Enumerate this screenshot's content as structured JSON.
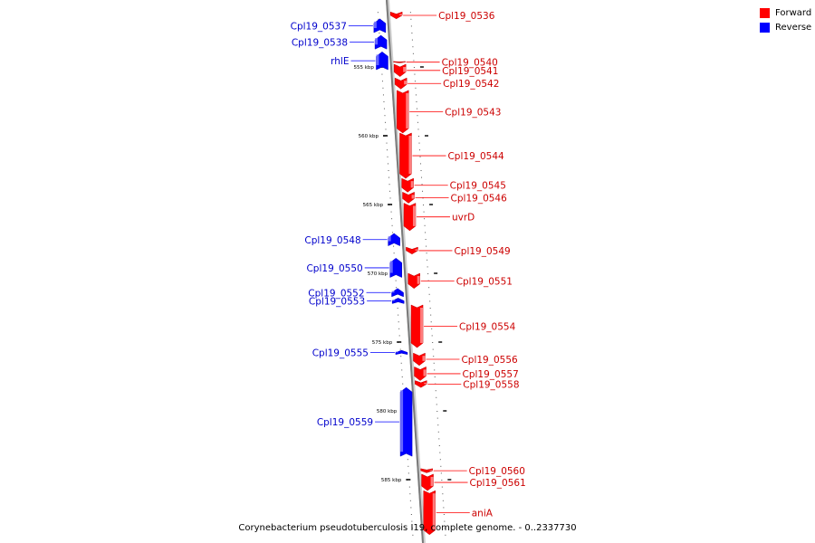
{
  "legend": {
    "forward_label": "Forward",
    "reverse_label": "Reverse",
    "forward_color": "#ff0000",
    "reverse_color": "#0000ff"
  },
  "footer": {
    "caption": "Corynebacterium pseudotuberculosis I19, complete genome. - 0..2337730"
  },
  "scale": {
    "ticks": [
      {
        "kbp": 555,
        "label": "555 kbp"
      },
      {
        "kbp": 560,
        "label": "560 kbp"
      },
      {
        "kbp": 565,
        "label": "565 kbp"
      },
      {
        "kbp": 570,
        "label": "570 kbp"
      },
      {
        "kbp": 575,
        "label": "575 kbp"
      },
      {
        "kbp": 580,
        "label": "580 kbp"
      },
      {
        "kbp": 585,
        "label": "585 kbp"
      }
    ]
  },
  "genes": [
    {
      "name": "Cpl19_0536",
      "strand": "forward",
      "start_kbp": 551.0,
      "end_kbp": 551.5
    },
    {
      "name": "Cpl19_0537",
      "strand": "reverse",
      "start_kbp": 551.5,
      "end_kbp": 552.5
    },
    {
      "name": "Cpl19_0538",
      "strand": "reverse",
      "start_kbp": 552.7,
      "end_kbp": 553.7
    },
    {
      "name": "rhlE",
      "strand": "reverse",
      "start_kbp": 553.9,
      "end_kbp": 555.2
    },
    {
      "name": "Cpl19_0540",
      "strand": "forward",
      "start_kbp": 554.6,
      "end_kbp": 554.7
    },
    {
      "name": "Cpl19_0541",
      "strand": "forward",
      "start_kbp": 554.8,
      "end_kbp": 555.7
    },
    {
      "name": "Cpl19_0542",
      "strand": "forward",
      "start_kbp": 555.8,
      "end_kbp": 556.6
    },
    {
      "name": "Cpl19_0543",
      "strand": "forward",
      "start_kbp": 556.7,
      "end_kbp": 559.8
    },
    {
      "name": "Cpl19_0544",
      "strand": "forward",
      "start_kbp": 559.8,
      "end_kbp": 563.1
    },
    {
      "name": "Cpl19_0545",
      "strand": "forward",
      "start_kbp": 563.1,
      "end_kbp": 564.1
    },
    {
      "name": "Cpl19_0546",
      "strand": "forward",
      "start_kbp": 564.1,
      "end_kbp": 564.9
    },
    {
      "name": "uvrD",
      "strand": "forward",
      "start_kbp": 564.9,
      "end_kbp": 566.9
    },
    {
      "name": "Cpl19_0548",
      "strand": "reverse",
      "start_kbp": 567.1,
      "end_kbp": 568.0
    },
    {
      "name": "Cpl19_0549",
      "strand": "forward",
      "start_kbp": 568.1,
      "end_kbp": 568.6
    },
    {
      "name": "Cpl19_0550",
      "strand": "reverse",
      "start_kbp": 568.9,
      "end_kbp": 570.3
    },
    {
      "name": "Cpl19_0551",
      "strand": "forward",
      "start_kbp": 570.0,
      "end_kbp": 571.1
    },
    {
      "name": "Cpl19_0552",
      "strand": "reverse",
      "start_kbp": 571.1,
      "end_kbp": 571.7
    },
    {
      "name": "Cpl19_0553",
      "strand": "reverse",
      "start_kbp": 571.8,
      "end_kbp": 572.2
    },
    {
      "name": "Cpl19_0554",
      "strand": "forward",
      "start_kbp": 572.3,
      "end_kbp": 575.4
    },
    {
      "name": "Cpl19_0555",
      "strand": "reverse",
      "start_kbp": 575.6,
      "end_kbp": 575.9
    },
    {
      "name": "Cpl19_0556",
      "strand": "forward",
      "start_kbp": 575.8,
      "end_kbp": 576.7
    },
    {
      "name": "Cpl19_0557",
      "strand": "forward",
      "start_kbp": 576.8,
      "end_kbp": 577.8
    },
    {
      "name": "Cpl19_0558",
      "strand": "forward",
      "start_kbp": 577.8,
      "end_kbp": 578.3
    },
    {
      "name": "Cpl19_0559",
      "strand": "reverse",
      "start_kbp": 578.3,
      "end_kbp": 583.3
    },
    {
      "name": "Cpl19_0560",
      "strand": "forward",
      "start_kbp": 584.2,
      "end_kbp": 584.5
    },
    {
      "name": "Cpl19_0561",
      "strand": "forward",
      "start_kbp": 584.6,
      "end_kbp": 585.8
    },
    {
      "name": "aniA",
      "strand": "forward",
      "start_kbp": 585.8,
      "end_kbp": 589.0
    }
  ]
}
